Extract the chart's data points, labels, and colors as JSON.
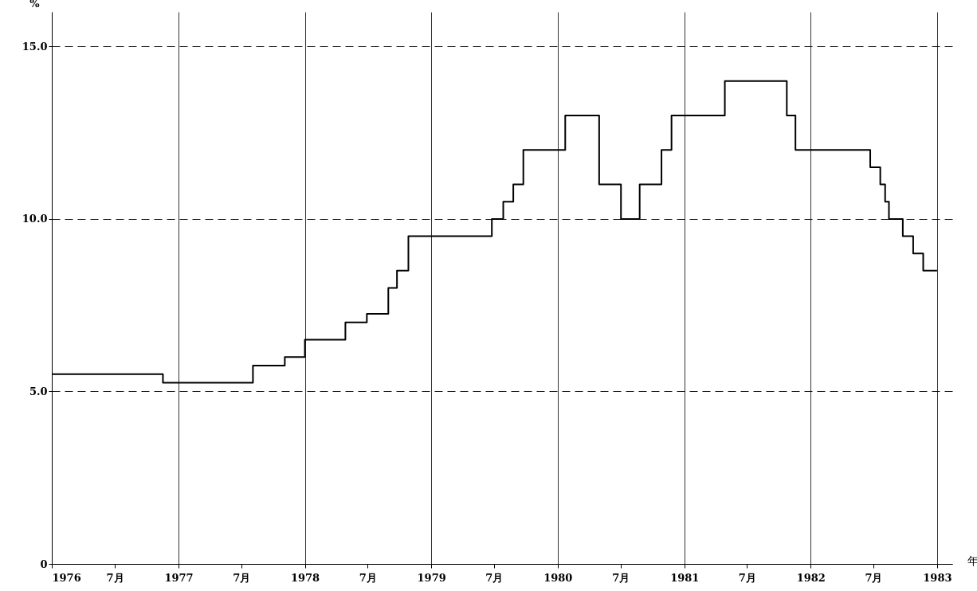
{
  "chart_data": {
    "type": "step",
    "xlabel": "年",
    "ylabel": "%",
    "x": [
      "1976-01-01",
      "1976-11-17",
      "1977-08-04",
      "1977-11-04",
      "1978-01-01",
      "1978-04-28",
      "1978-06-29",
      "1978-08-30",
      "1978-09-24",
      "1978-10-27",
      "1979-06-25",
      "1979-07-28",
      "1979-08-26",
      "1979-09-24",
      "1980-01-23",
      "1980-04-30",
      "1980-07-02",
      "1980-08-25",
      "1980-10-27",
      "1980-11-25",
      "1981-04-28",
      "1981-10-24",
      "1981-11-18",
      "1982-06-22",
      "1982-07-21",
      "1982-08-04",
      "1982-08-15",
      "1982-09-24",
      "1982-10-24",
      "1982-11-22",
      "1983-01-01"
    ],
    "series": [
      {
        "color": "#000000",
        "values": [
          5.5,
          5.25,
          5.75,
          6.0,
          6.5,
          7.0,
          7.25,
          8.0,
          8.5,
          9.5,
          10.0,
          10.5,
          11.0,
          12.0,
          13.0,
          11.0,
          10.0,
          11.0,
          12.0,
          13.0,
          14.0,
          13.0,
          12.0,
          11.5,
          11.0,
          10.5,
          10.0,
          9.5,
          9.0,
          8.5,
          8.5
        ]
      }
    ],
    "xlim": [
      "1976-01-01",
      "1983-02-14"
    ],
    "ylim": [
      0,
      16
    ],
    "xticks": [
      "1976",
      {
        "value": "1976-07",
        "label": "7月"
      },
      "1977",
      {
        "value": "1977-07",
        "label": "7月"
      },
      "1978",
      {
        "value": "1978-07",
        "label": "7月"
      },
      "1979",
      {
        "value": "1979-07",
        "label": "7月"
      },
      "1980",
      {
        "value": "1980-07",
        "label": "7月"
      },
      "1981",
      {
        "value": "1981-07",
        "label": "7月"
      },
      "1982",
      {
        "value": "1982-07",
        "label": "7月"
      },
      "1983"
    ],
    "yticks": [
      0,
      {
        "value": 5,
        "label": "5.0"
      },
      {
        "value": 10,
        "label": "10.0"
      },
      {
        "value": 15,
        "label": "15.0"
      }
    ],
    "grid": true,
    "line_style": "solid",
    "marker": "none"
  }
}
